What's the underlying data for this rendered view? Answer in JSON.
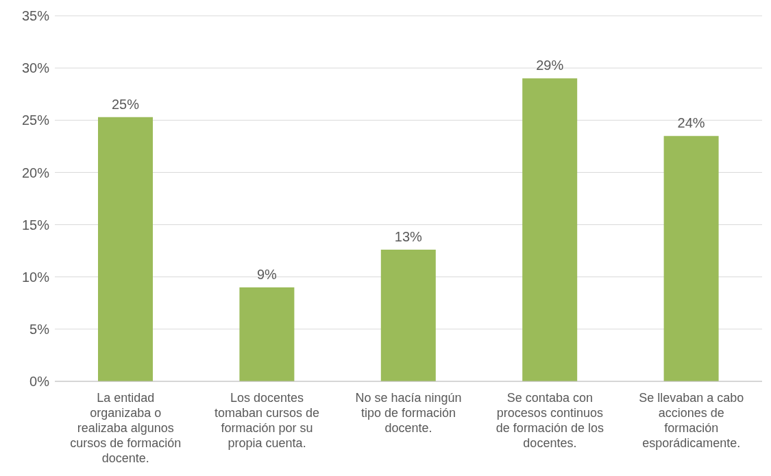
{
  "chart_data": {
    "type": "bar",
    "categories": [
      "La entidad organizaba o realizaba algunos cursos de formación docente.",
      "Los docentes tomaban cursos de formación por su propia cuenta.",
      "No se hacía ningún tipo de formación docente.",
      "Se contaba con procesos continuos de formación de los docentes.",
      "Se llevaban a cabo acciones de formación esporádicamente."
    ],
    "values": [
      25.3,
      9.0,
      12.6,
      29.0,
      23.5
    ],
    "value_labels": [
      "25%",
      "9%",
      "13%",
      "29%",
      "24%"
    ],
    "color": "#9bbb59",
    "ylim": [
      0,
      35
    ],
    "yticks": [
      {
        "value": 0,
        "label": "0%"
      },
      {
        "value": 5,
        "label": "5%"
      },
      {
        "value": 10,
        "label": "10%"
      },
      {
        "value": 15,
        "label": "15%"
      },
      {
        "value": 20,
        "label": "20%"
      },
      {
        "value": 25,
        "label": "25%"
      },
      {
        "value": 30,
        "label": "30%"
      },
      {
        "value": 35,
        "label": "35%"
      }
    ],
    "grid": "y"
  }
}
